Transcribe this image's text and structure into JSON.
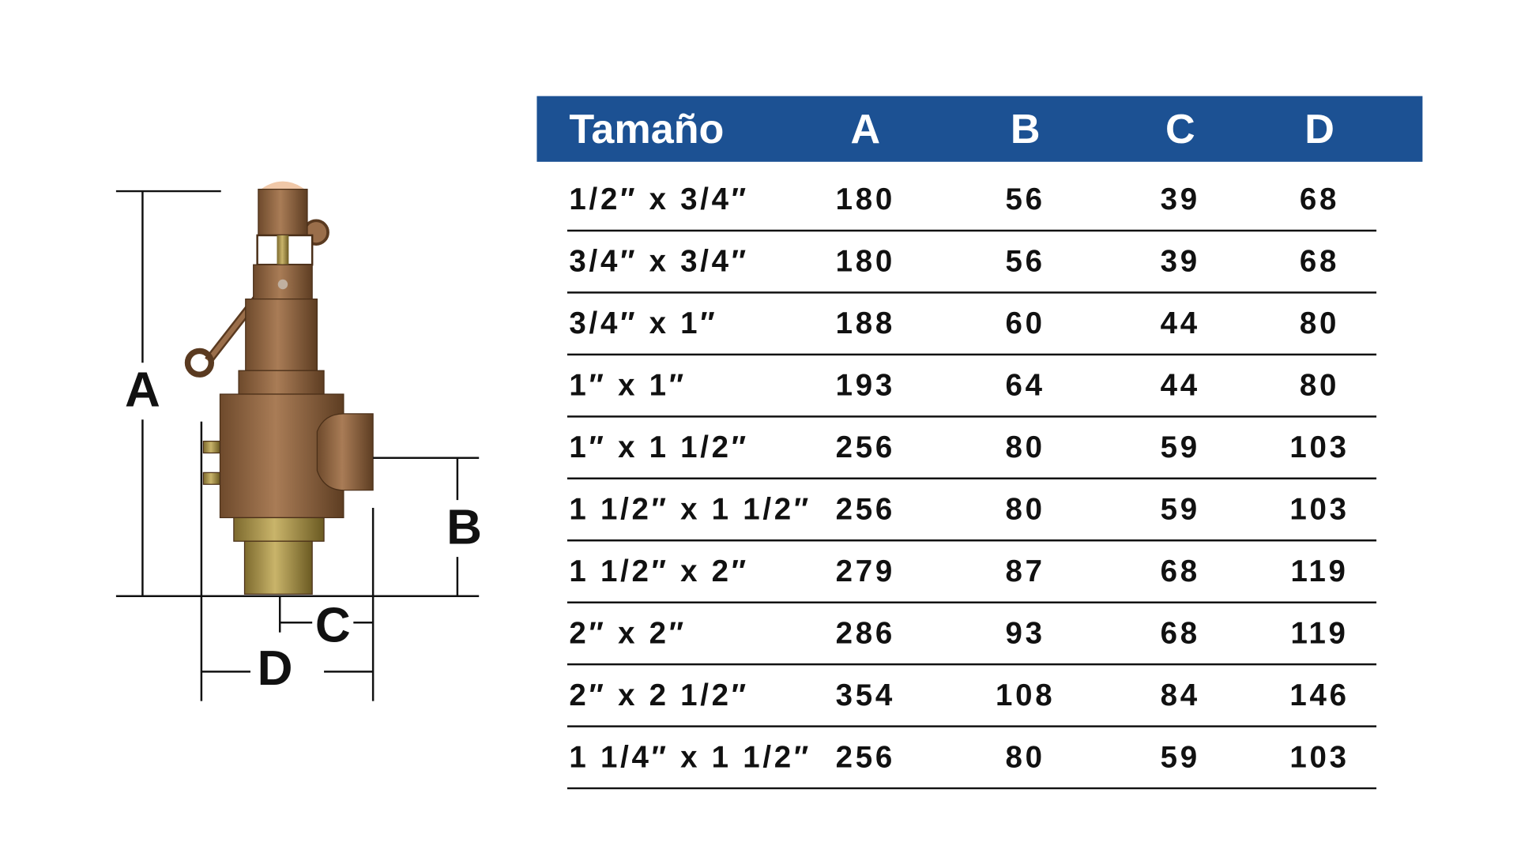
{
  "diagram": {
    "labels": [
      "A",
      "B",
      "C",
      "D"
    ]
  },
  "table": {
    "header": [
      "Tamaño",
      "A",
      "B",
      "C",
      "D"
    ],
    "rows": [
      [
        "1/2″ x 3/4″",
        "180",
        "56",
        "39",
        "68"
      ],
      [
        "3/4″ x 3/4″",
        "180",
        "56",
        "39",
        "68"
      ],
      [
        "3/4″ x 1″",
        "188",
        "60",
        "44",
        "80"
      ],
      [
        "1″ x 1″",
        "193",
        "64",
        "44",
        "80"
      ],
      [
        "1″ x 1 1/2″",
        "256",
        "80",
        "59",
        "103"
      ],
      [
        "1 1/2″ x 1 1/2″",
        "256",
        "80",
        "59",
        "103"
      ],
      [
        "1 1/2″ x 2″",
        "279",
        "87",
        "68",
        "119"
      ],
      [
        "2″ x 2″",
        "286",
        "93",
        "68",
        "119"
      ],
      [
        "2″ x 2 1/2″",
        "354",
        "108",
        "84",
        "146"
      ],
      [
        "1 1/4″ x 1 1/2″",
        "256",
        "80",
        "59",
        "103"
      ]
    ]
  }
}
